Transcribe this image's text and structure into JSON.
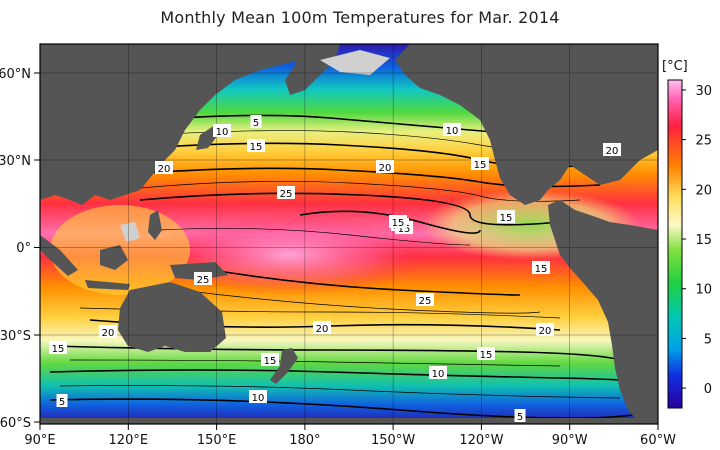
{
  "title": "Monthly Mean 100m Temperatures for Mar. 2014",
  "colorbar": {
    "unit": "[°C]",
    "min": -2,
    "max": 31,
    "ticks": [
      "30",
      "25",
      "20",
      "15",
      "10",
      "5",
      "0"
    ],
    "colors": [
      "#2a00a0",
      "#1030e0",
      "#00a0e8",
      "#00c8b0",
      "#20d040",
      "#90e030",
      "#e8f080",
      "#fff8c8",
      "#ffe060",
      "#ffb000",
      "#ff6020",
      "#ff2040",
      "#ff60a0",
      "#ffc0f0"
    ]
  },
  "axes": {
    "x_ticks": [
      "90°E",
      "120°E",
      "150°E",
      "180°",
      "150°W",
      "120°W",
      "90°W",
      "60°W"
    ],
    "y_ticks": [
      "60°N",
      "30°N",
      "0°",
      "30°S",
      "60°S"
    ]
  },
  "contour_labels": [
    "5",
    "10",
    "10",
    "15",
    "20",
    "20",
    "20",
    "25",
    "15",
    "15",
    "20",
    "15",
    "25",
    "20",
    "20",
    "15",
    "15",
    "20",
    "15",
    "25",
    "15",
    "10",
    "10",
    "5",
    "5",
    "15"
  ],
  "colors": {
    "land": "#555555",
    "missing": "#d0d0d0"
  }
}
